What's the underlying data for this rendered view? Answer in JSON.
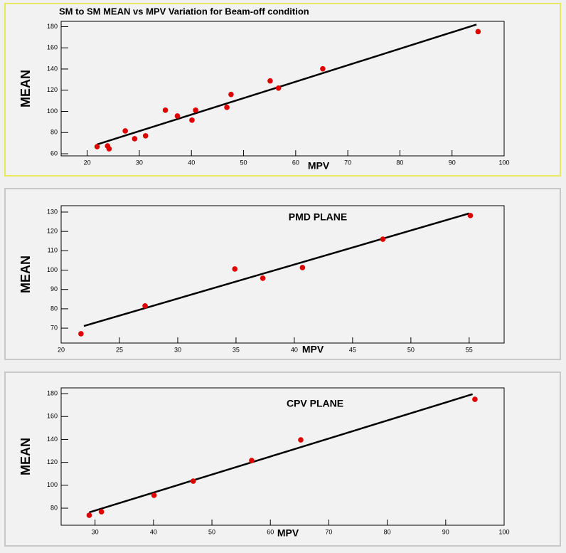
{
  "chart_data": [
    {
      "type": "scatter",
      "title": "SM to SM MEAN vs MPV Variation for Beam-off condition",
      "x_label": "MPV",
      "y_label": "MEAN",
      "x": [
        21.9,
        23.9,
        24.2,
        27.3,
        29.1,
        31.2,
        35.0,
        37.3,
        40.1,
        40.8,
        46.8,
        47.6,
        55.1,
        56.7,
        65.2,
        95.0
      ],
      "values": [
        66.7,
        67.4,
        64.7,
        81.6,
        74.2,
        76.9,
        101.1,
        95.7,
        91.7,
        101.1,
        103.8,
        116.0,
        128.8,
        122.0,
        140.2,
        175.3
      ],
      "color": "#e00000",
      "fit_x": [
        21.9,
        94.7
      ],
      "fit_values": [
        68.8,
        182.0
      ],
      "fit_color": "#000000",
      "xlim": [
        15,
        100
      ],
      "ylim": [
        58,
        185
      ],
      "xticks": [
        20,
        30,
        40,
        50,
        60,
        70,
        80,
        90,
        100
      ],
      "yticks": [
        60,
        80,
        100,
        120,
        140,
        160,
        180
      ]
    },
    {
      "type": "scatter",
      "title": "PMD PLANE",
      "x_label": "MPV",
      "y_label": "MEAN",
      "x": [
        21.7,
        27.2,
        34.9,
        37.3,
        40.7,
        47.6,
        55.1
      ],
      "values": [
        67.1,
        81.5,
        100.6,
        95.8,
        101.3,
        116.0,
        128.2
      ],
      "color": "#e00000",
      "fit_x": [
        21.95,
        55.0
      ],
      "fit_values": [
        71.1,
        129.3
      ],
      "fit_color": "#000000",
      "xlim": [
        20,
        58
      ],
      "ylim": [
        62.3,
        133.3
      ],
      "xticks": [
        20,
        25,
        30,
        35,
        40,
        45,
        50,
        55
      ],
      "yticks": [
        70,
        80,
        90,
        100,
        110,
        120,
        130
      ]
    },
    {
      "type": "scatter",
      "title": "CPV PLANE",
      "x_label": "MPV",
      "y_label": "MEAN",
      "x": [
        29.0,
        31.1,
        40.1,
        46.8,
        56.8,
        65.2,
        95.0
      ],
      "values": [
        73.8,
        76.9,
        91.2,
        103.6,
        121.6,
        139.6,
        175.0
      ],
      "color": "#e00000",
      "fit_x": [
        29.0,
        94.6
      ],
      "fit_values": [
        76.3,
        179.5
      ],
      "fit_color": "#000000",
      "xlim": [
        24.2,
        100
      ],
      "ylim": [
        65.1,
        185
      ],
      "xticks": [
        30,
        40,
        50,
        60,
        70,
        80,
        90,
        100
      ],
      "yticks": [
        80,
        100,
        120,
        140,
        160,
        180
      ]
    }
  ]
}
